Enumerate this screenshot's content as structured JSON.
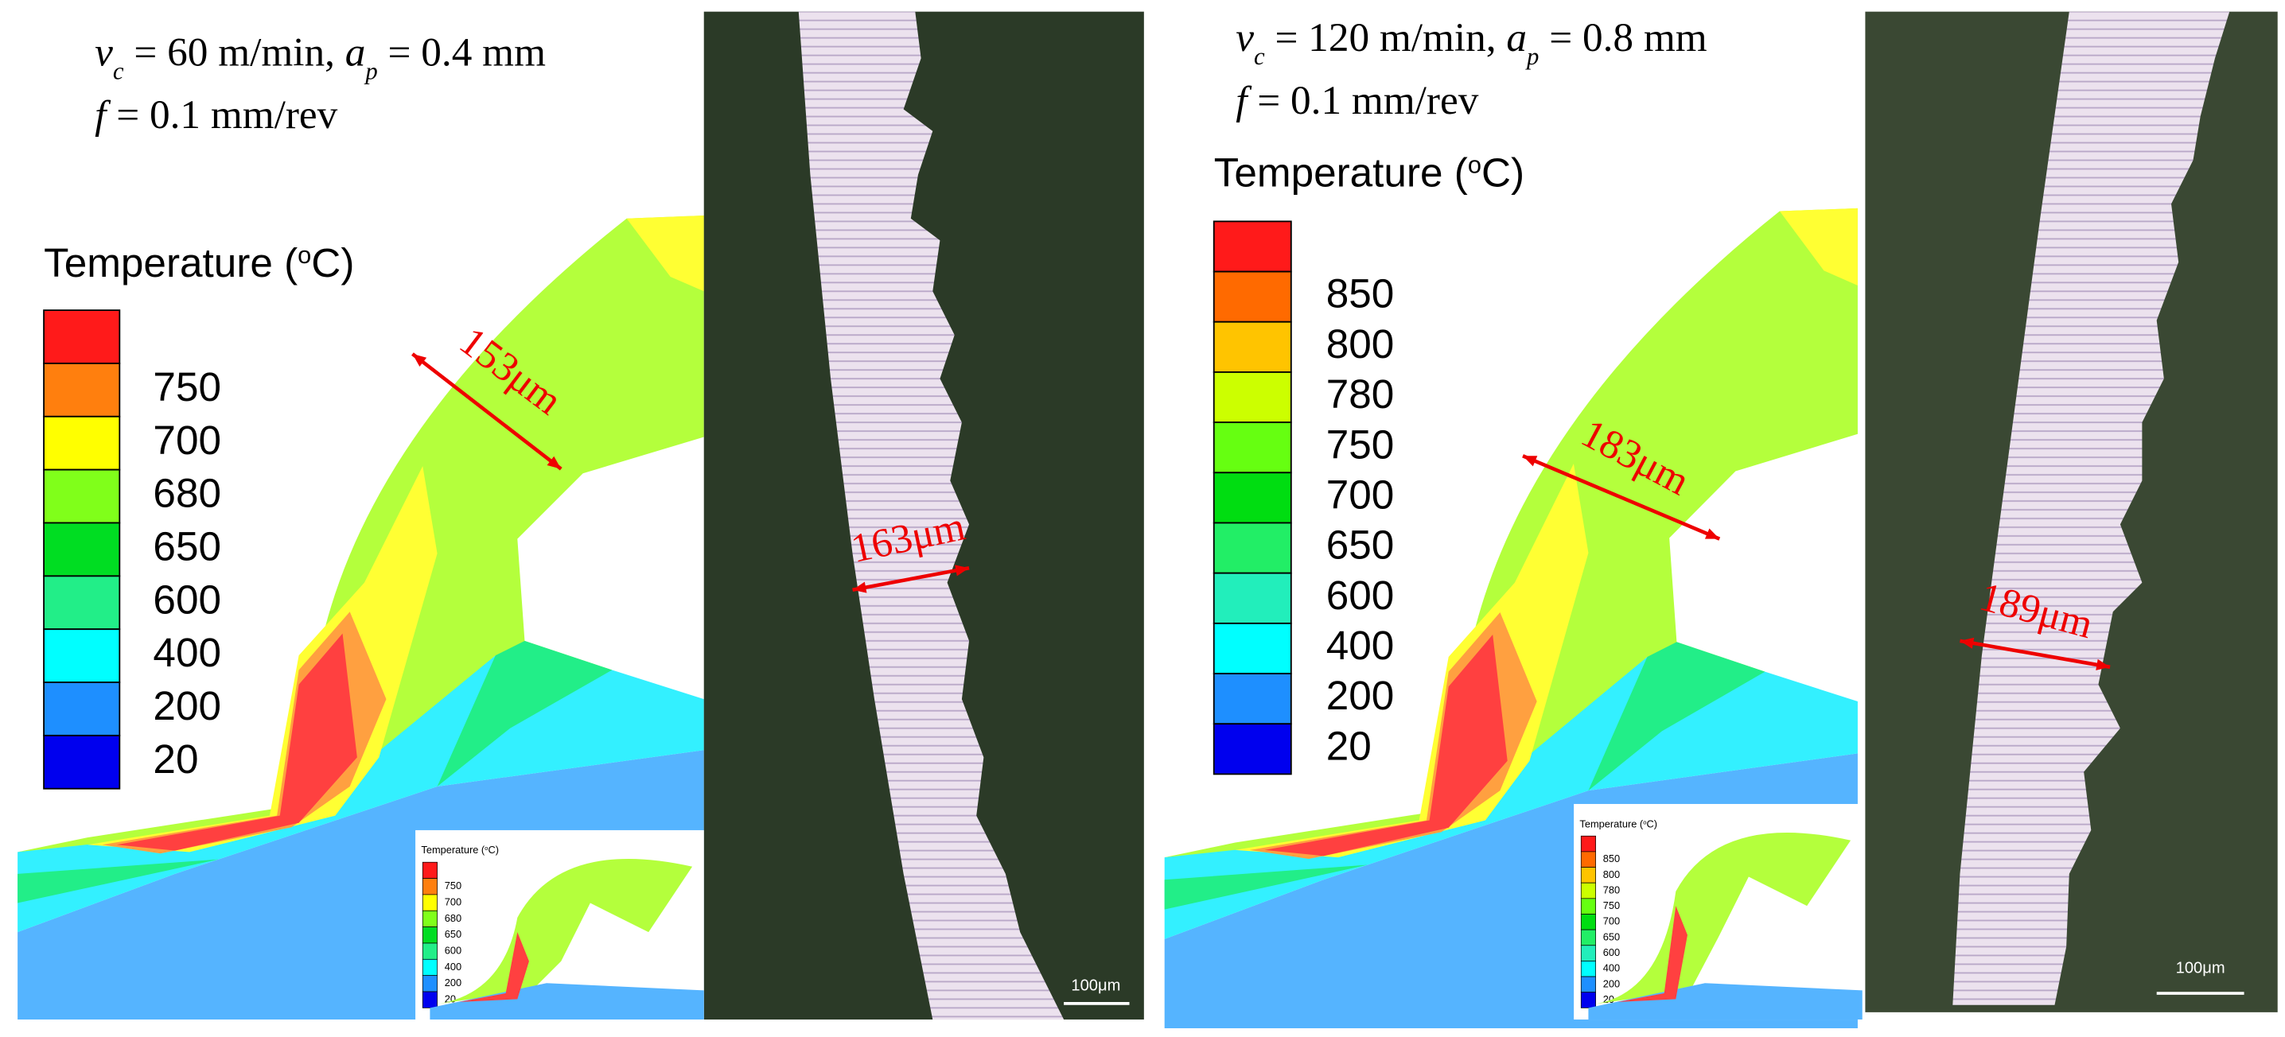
{
  "panels": [
    {
      "conditions": [
        [
          {
            "text": "v",
            "style": "italic"
          },
          {
            "text": "c",
            "style": "sub"
          },
          {
            "text": " = 60 m/min, "
          },
          {
            "text": "a",
            "style": "italic"
          },
          {
            "text": "p",
            "style": "sub"
          },
          {
            "text": " = 0.4 mm"
          }
        ],
        [
          {
            "text": "f",
            "style": "italic"
          },
          {
            "text": " = 0.1 mm/rev"
          }
        ]
      ],
      "legend": {
        "title": [
          {
            "text": "Temperature ("
          },
          {
            "text": "o",
            "style": "sup"
          },
          {
            "text": "C)"
          }
        ],
        "levels": [
          750,
          700,
          680,
          650,
          600,
          400,
          200,
          20
        ],
        "colors": [
          "#ff1a1a",
          "#ff7f0e",
          "#ffff00",
          "#80ff1a",
          "#00dd22",
          "#22ee88",
          "#00ffff",
          "#1e8fff",
          "#0000ee"
        ]
      },
      "chip_thickness_simulated": "153μm",
      "chip_thickness_measured": "163μm",
      "scale_bar": "100μm"
    },
    {
      "conditions": [
        [
          {
            "text": "v",
            "style": "italic"
          },
          {
            "text": "c",
            "style": "sub"
          },
          {
            "text": " = 120 m/min, "
          },
          {
            "text": "a",
            "style": "italic"
          },
          {
            "text": "p",
            "style": "sub"
          },
          {
            "text": " = 0.8 mm"
          }
        ],
        [
          {
            "text": "f",
            "style": "italic"
          },
          {
            "text": " = 0.1 mm/rev"
          }
        ]
      ],
      "legend": {
        "title": [
          {
            "text": "Temperature ("
          },
          {
            "text": "o",
            "style": "sup"
          },
          {
            "text": "C)"
          }
        ],
        "levels": [
          850,
          800,
          780,
          750,
          700,
          650,
          600,
          400,
          200,
          20
        ],
        "colors": [
          "#ff1a1a",
          "#ff6a00",
          "#ffc400",
          "#ccff00",
          "#66ff11",
          "#00dd11",
          "#22ee66",
          "#22eebb",
          "#00ffff",
          "#1e8fff",
          "#0000ee"
        ]
      },
      "chip_thickness_simulated": "183μm",
      "chip_thickness_measured": "189μm",
      "scale_bar": "100μm"
    }
  ]
}
